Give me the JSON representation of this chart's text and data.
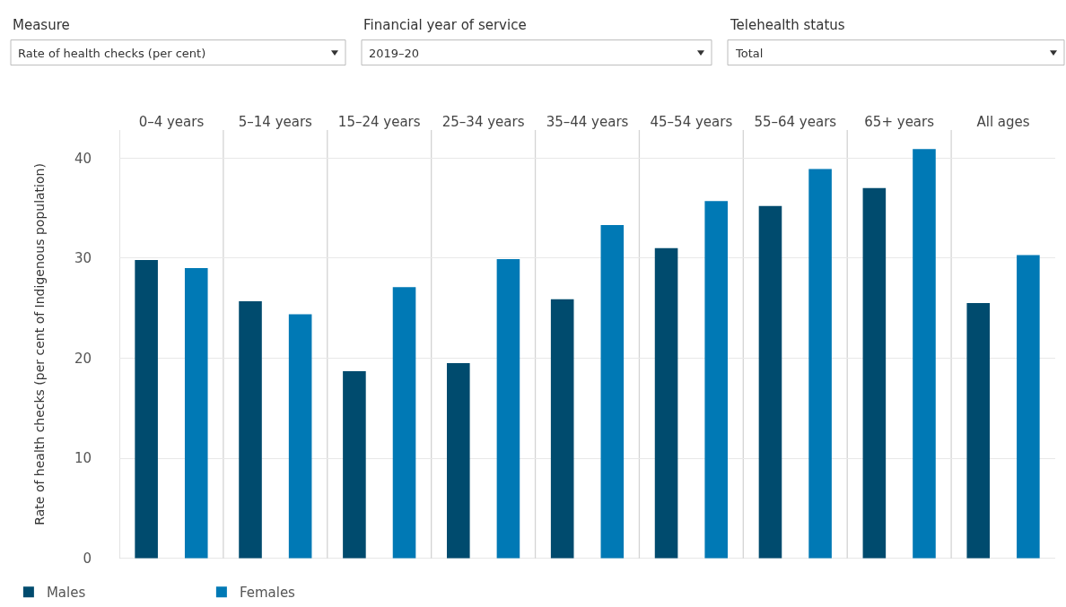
{
  "chart_data": {
    "type": "bar",
    "ylabel": "Rate of health checks (per cent of Indigenous population)",
    "categories": [
      "0–4 years",
      "5–14 years",
      "15–24 years",
      "25–34 years",
      "35–44 years",
      "45–54 years",
      "55–64 years",
      "65+ years",
      "All ages"
    ],
    "series": [
      {
        "name": "Males",
        "color": "#004b6e",
        "values": [
          29.8,
          25.7,
          18.7,
          19.5,
          25.9,
          31.0,
          35.2,
          37.0,
          25.5
        ]
      },
      {
        "name": "Females",
        "color": "#0079b5",
        "values": [
          29.0,
          24.4,
          27.1,
          29.9,
          33.3,
          35.7,
          38.9,
          40.9,
          30.3
        ]
      }
    ],
    "ylim": [
      0,
      42.8
    ],
    "yticks": [
      0,
      10,
      20,
      30,
      40
    ],
    "grid": true,
    "legend": "bottom left",
    "annotations": [
      "Measure",
      "Rate of health checks (per cent)",
      "Financial year of service",
      "2019–20",
      "Telehealth status",
      "Total"
    ]
  }
}
